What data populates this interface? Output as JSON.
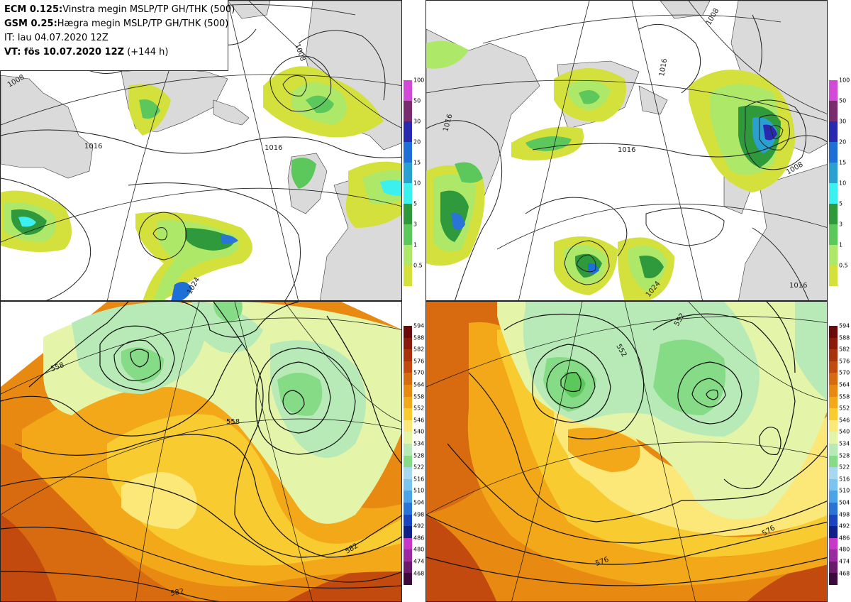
{
  "header": {
    "line1_model": "ECM 0.125:",
    "line1_text": "Vinstra megin MSLP/TP GH/THK (500)",
    "line2_model": "GSM 0.25:",
    "line2_text": "Hægra megin MSLP/TP GH/THK (500)",
    "line3": "IT: lau 04.07.2020 12Z",
    "line4_bold": "VT: fös 10.07.2020 12Z",
    "line4_extra": "(+144 h)"
  },
  "precip_legend": {
    "levels": [
      "100",
      "50",
      "30",
      "20",
      "15",
      "10",
      "5",
      "3",
      "1",
      "0.5"
    ],
    "colors": [
      "#d24ad8",
      "#7a2d6e",
      "#2a2ab0",
      "#1e6fd6",
      "#2aa0d0",
      "#3cf0f0",
      "#2e9a3c",
      "#5cc85c",
      "#aee868",
      "#d4e03c"
    ]
  },
  "thickness_legend": {
    "levels": [
      "594",
      "588",
      "582",
      "576",
      "570",
      "564",
      "558",
      "552",
      "546",
      "540",
      "534",
      "528",
      "522",
      "516",
      "510",
      "504",
      "498",
      "492",
      "486",
      "480",
      "474",
      "468"
    ],
    "colors": [
      "#6b0a0a",
      "#8b1a0a",
      "#a8320c",
      "#c24a0e",
      "#d86a10",
      "#e88a12",
      "#f2a818",
      "#f8cc30",
      "#fbe878",
      "#e4f4a8",
      "#b8eab8",
      "#86dc86",
      "#a8d8f0",
      "#7cc4f0",
      "#4aa4e8",
      "#2a74d8",
      "#1a44c0",
      "#10228a",
      "#c838c8",
      "#9a2aa0",
      "#6a1a6a",
      "#3c0a3c"
    ]
  },
  "top_left_labels": [
    "1016",
    "1016",
    "1024",
    "1008",
    "1008"
  ],
  "top_right_labels": [
    "1016",
    "1016",
    "1016",
    "1008",
    "1008",
    "1024",
    "1016"
  ],
  "bottom_left_labels": [
    "558",
    "558",
    "582",
    "582"
  ],
  "bottom_right_labels": [
    "552",
    "552",
    "576",
    "576"
  ]
}
